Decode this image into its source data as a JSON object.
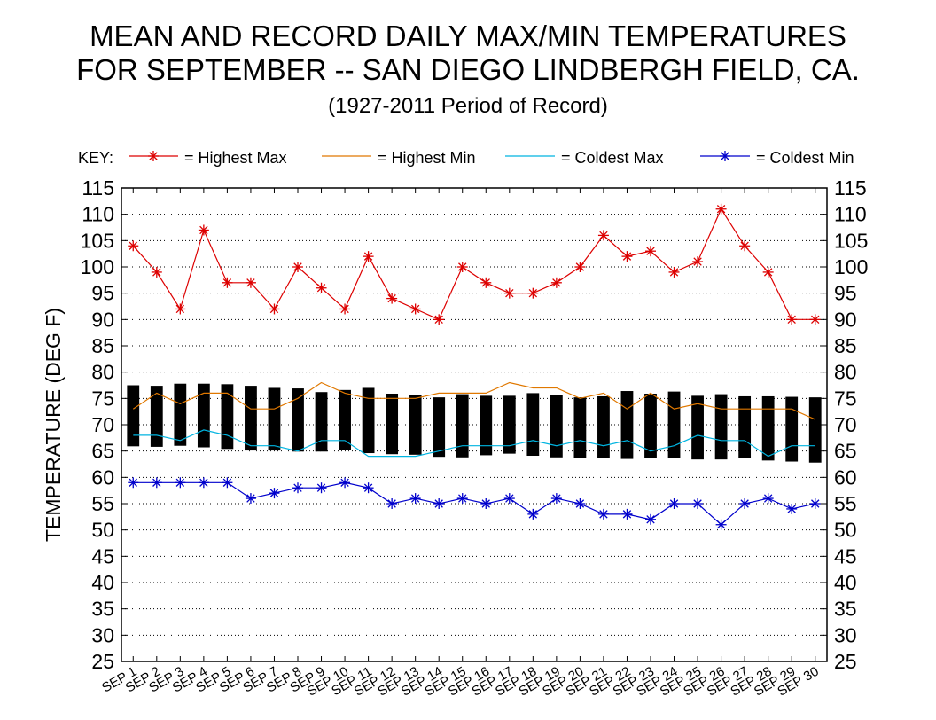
{
  "chart_data": {
    "type": "line",
    "title": "MEAN AND RECORD DAILY MAX/MIN TEMPERATURES",
    "title_line2": "FOR SEPTEMBER -- SAN DIEGO LINDBERGH FIELD, CA.",
    "subtitle": "(1927-2011 Period of Record)",
    "ylabel": "TEMPERATURE (DEG F)",
    "xlabel": "",
    "ylim": [
      25,
      115
    ],
    "yticks": [
      25,
      30,
      35,
      40,
      45,
      50,
      55,
      60,
      65,
      70,
      75,
      80,
      85,
      90,
      95,
      100,
      105,
      110,
      115
    ],
    "grid": "horizontal dotted",
    "legend_position": "top",
    "legend_key_label": "KEY:",
    "categories": [
      "SEP 1",
      "SEP 2",
      "SEP 3",
      "SEP 4",
      "SEP 5",
      "SEP 6",
      "SEP 7",
      "SEP 8",
      "SEP 9",
      "SEP 10",
      "SEP 11",
      "SEP 12",
      "SEP 13",
      "SEP 14",
      "SEP 15",
      "SEP 16",
      "SEP 17",
      "SEP 18",
      "SEP 19",
      "SEP 20",
      "SEP 21",
      "SEP 22",
      "SEP 23",
      "SEP 24",
      "SEP 25",
      "SEP 26",
      "SEP 27",
      "SEP 28",
      "SEP 29",
      "SEP 30"
    ],
    "series": [
      {
        "name": "= Highest Max",
        "color": "#dd0000",
        "marker": "asterisk",
        "values": [
          104,
          99,
          92,
          107,
          97,
          97,
          92,
          100,
          96,
          92,
          102,
          94,
          92,
          90,
          100,
          97,
          95,
          95,
          97,
          100,
          106,
          102,
          103,
          99,
          101,
          111,
          104,
          99,
          90,
          90
        ]
      },
      {
        "name": "= Highest Min",
        "color": "#e07800",
        "marker": "none",
        "values": [
          73,
          76,
          74,
          76,
          76,
          73,
          73,
          75,
          78,
          76,
          75,
          75,
          75,
          76,
          76,
          76,
          78,
          77,
          77,
          75,
          76,
          73,
          76,
          73,
          74,
          73,
          73,
          73,
          73,
          71
        ]
      },
      {
        "name": "= Coldest Max",
        "color": "#00b4e0",
        "marker": "none",
        "values": [
          68,
          68,
          67,
          69,
          68,
          66,
          66,
          65,
          67,
          67,
          64,
          64,
          64,
          65,
          66,
          66,
          66,
          67,
          66,
          67,
          66,
          67,
          65,
          66,
          68,
          67,
          67,
          64,
          66,
          66
        ]
      },
      {
        "name": "= Coldest Min",
        "color": "#0000cc",
        "marker": "asterisk",
        "values": [
          59,
          59,
          59,
          59,
          59,
          56,
          57,
          58,
          58,
          59,
          58,
          55,
          56,
          55,
          56,
          55,
          56,
          53,
          56,
          55,
          53,
          53,
          52,
          55,
          55,
          51,
          55,
          56,
          54,
          55
        ]
      }
    ],
    "mean_bars": {
      "color": "#000000",
      "mean_max": [
        77.5,
        77.4,
        77.8,
        77.8,
        77.7,
        77.4,
        77.0,
        76.9,
        76.2,
        76.6,
        77.0,
        75.9,
        75.6,
        75.2,
        75.8,
        75.5,
        75.5,
        76.0,
        75.7,
        75.2,
        75.4,
        76.4,
        75.9,
        76.3,
        75.5,
        75.8,
        75.4,
        75.4,
        75.3,
        75.2
      ],
      "mean_min": [
        65.9,
        65.8,
        66.0,
        65.7,
        65.4,
        65.1,
        65.1,
        64.9,
        64.9,
        65.2,
        64.6,
        64.4,
        64.3,
        63.9,
        63.8,
        64.2,
        64.5,
        64.1,
        63.8,
        63.7,
        63.6,
        63.5,
        63.6,
        63.6,
        63.4,
        63.4,
        63.7,
        63.2,
        63.0,
        62.8
      ]
    }
  }
}
